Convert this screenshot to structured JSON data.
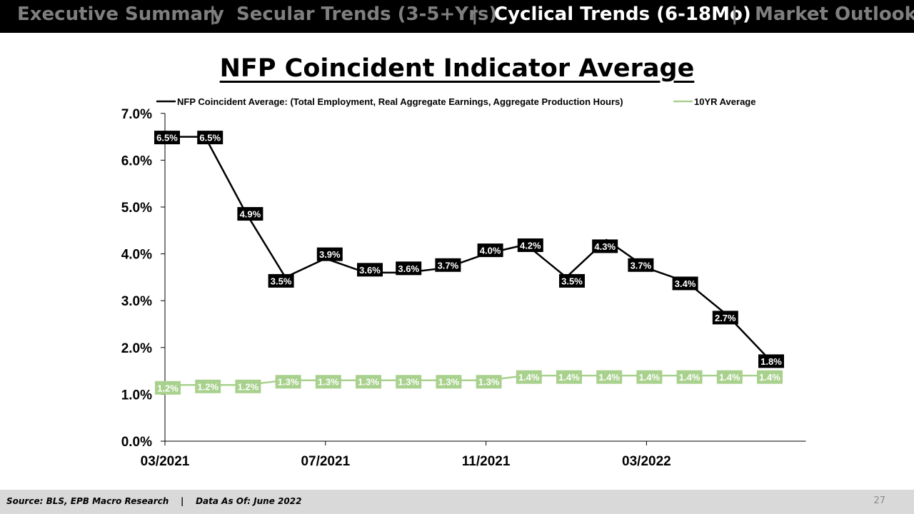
{
  "nav": {
    "items": [
      {
        "label": "Executive Summary",
        "active": false
      },
      {
        "label": "Secular Trends (3-5+Yrs)",
        "active": false
      },
      {
        "label": "Cyclical Trends (6-18Mo)",
        "active": true
      },
      {
        "label": "Market Outlook",
        "active": false
      }
    ],
    "separator": "|"
  },
  "page_title": "NFP Coincident Indicator Average",
  "footer": {
    "source": "Source: BLS, EPB Macro Research    |    Data As Of: June 2022",
    "page_number": "27"
  },
  "colors": {
    "nav_bg": "#000000",
    "nav_active": "#ffffff",
    "nav_inactive": "#7f7f7f",
    "series_main": "#000000",
    "series_avg": "#a9d18e",
    "footer_bg": "#d9d9d9"
  },
  "chart_data": {
    "type": "line",
    "x": [
      "03/2021",
      "04/2021",
      "05/2021",
      "06/2021",
      "07/2021",
      "08/2021",
      "09/2021",
      "10/2021",
      "11/2021",
      "12/2021",
      "01/2022",
      "02/2022",
      "03/2022",
      "04/2022",
      "05/2022",
      "06/2022"
    ],
    "xtick_labels": [
      "03/2021",
      "07/2021",
      "11/2021",
      "03/2022"
    ],
    "ylim": [
      0,
      7
    ],
    "ytick_labels": [
      "0.0%",
      "1.0%",
      "2.0%",
      "3.0%",
      "4.0%",
      "5.0%",
      "6.0%",
      "7.0%"
    ],
    "grid": false,
    "legend": "top",
    "series": [
      {
        "name": "NFP Coincident Average: (Total Employment, Real Aggregate Earnings, Aggregate Production Hours)",
        "values": [
          6.5,
          6.5,
          4.9,
          3.5,
          3.9,
          3.6,
          3.6,
          3.7,
          4.0,
          4.2,
          3.5,
          4.3,
          3.7,
          3.4,
          2.7,
          1.8
        ],
        "labels": [
          "6.5%",
          "6.5%",
          "4.9%",
          "3.5%",
          "3.9%",
          "3.6%",
          "3.6%",
          "3.7%",
          "4.0%",
          "4.2%",
          "3.5%",
          "4.3%",
          "3.7%",
          "3.4%",
          "2.7%",
          "1.8%"
        ],
        "color": "#000000"
      },
      {
        "name": "10YR Average",
        "values": [
          1.2,
          1.2,
          1.2,
          1.3,
          1.3,
          1.3,
          1.3,
          1.3,
          1.3,
          1.4,
          1.4,
          1.4,
          1.4,
          1.4,
          1.4,
          1.4
        ],
        "labels": [
          "1.2%",
          "1.2%",
          "1.2%",
          "1.3%",
          "1.3%",
          "1.3%",
          "1.3%",
          "1.3%",
          "1.3%",
          "1.4%",
          "1.4%",
          "1.4%",
          "1.4%",
          "1.4%",
          "1.4%",
          "1.4%"
        ],
        "color": "#a9d18e"
      }
    ]
  }
}
